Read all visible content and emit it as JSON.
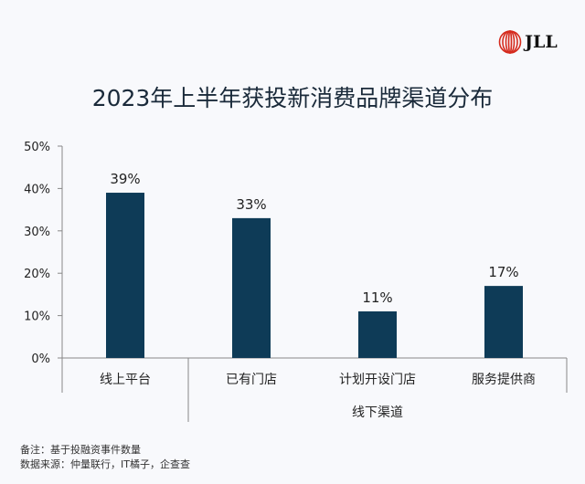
{
  "logo_text": "JLL",
  "notes": [
    "备注：基于投融资事件数量",
    "数据来源：仲量联行，IT橘子，企查查"
  ],
  "colors": {
    "bar": "#0e3b57",
    "brand": "#d52b1e"
  },
  "chart_data": {
    "type": "bar",
    "title": "2023年上半年获投新消费品牌渠道分布",
    "categories": [
      "线上平台",
      "已有门店",
      "计划开设门店",
      "服务提供商"
    ],
    "values": [
      39,
      33,
      11,
      17
    ],
    "data_labels": [
      "39%",
      "33%",
      "11%",
      "17%"
    ],
    "group_label": "线下渠道",
    "yticks": [
      "0%",
      "10%",
      "20%",
      "30%",
      "40%",
      "50%"
    ],
    "ylim": [
      0,
      50
    ],
    "xlabel": "",
    "ylabel": ""
  }
}
